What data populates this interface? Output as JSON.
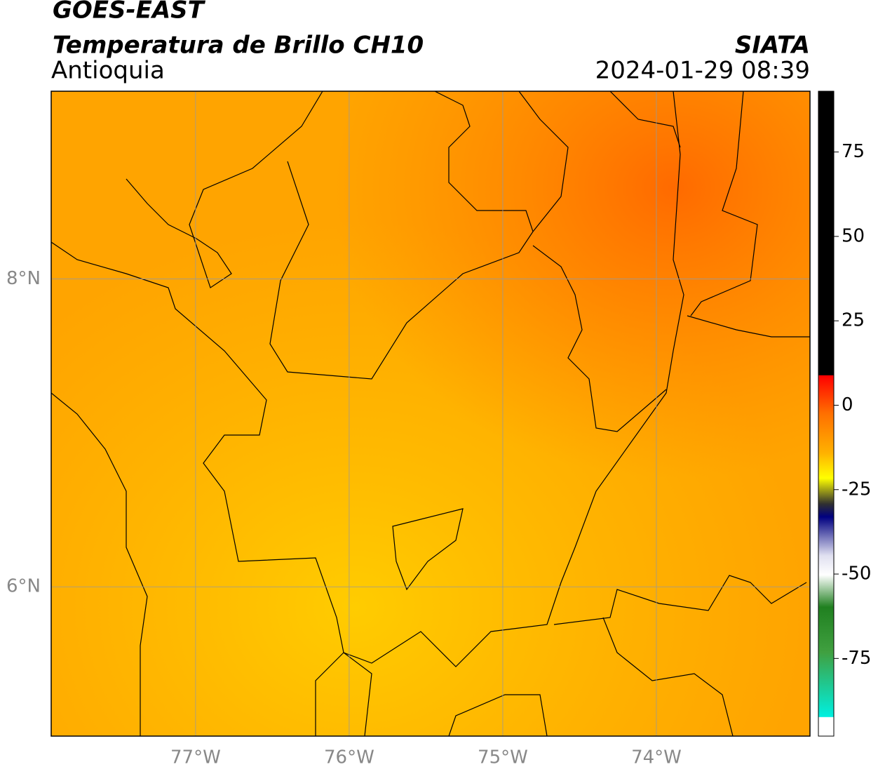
{
  "header": {
    "title": "GOES-EAST",
    "subtitle": "Temperatura de Brillo CH10",
    "region": "Antioquia",
    "source": "SIATA",
    "datetime": "2024-01-29 08:39"
  },
  "map": {
    "lonlim": [
      -77.94,
      -73.0
    ],
    "latlim": [
      5.03,
      9.22
    ],
    "lon_ticks": [
      {
        "value": -77,
        "label": "77°W"
      },
      {
        "value": -76,
        "label": "76°W"
      },
      {
        "value": -75,
        "label": "75°W"
      },
      {
        "value": -74,
        "label": "74°W"
      }
    ],
    "lat_ticks": [
      {
        "value": 8,
        "label": "8°N"
      },
      {
        "value": 6,
        "label": "6°N"
      }
    ],
    "grid": true
  },
  "colorbar": {
    "lim": [
      -98,
      93
    ],
    "ticks": [
      75,
      50,
      25,
      0,
      -25,
      -50,
      -75
    ]
  }
}
